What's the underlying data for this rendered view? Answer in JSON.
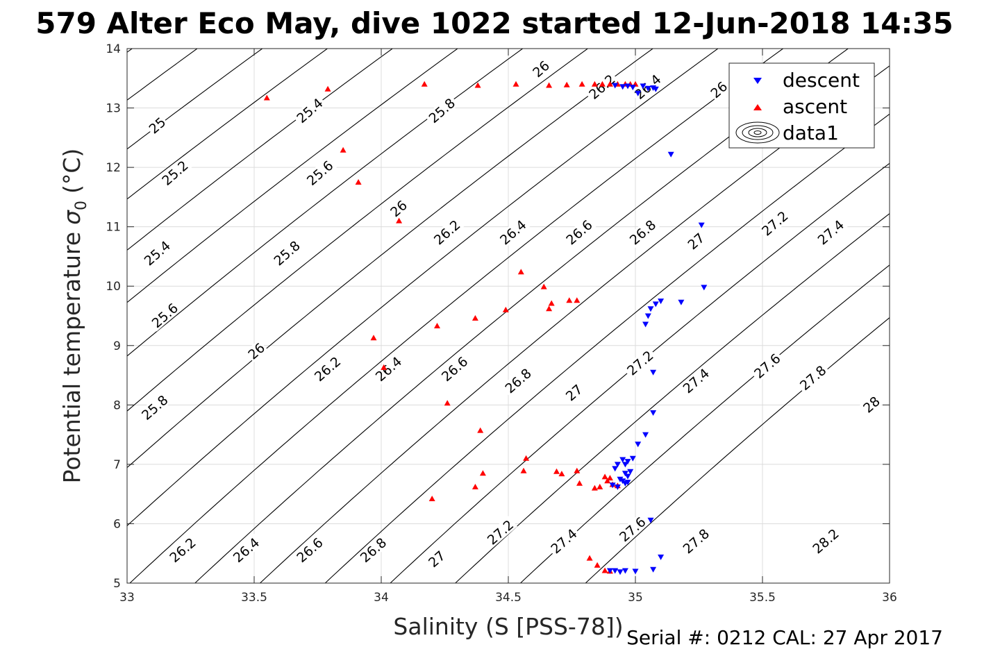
{
  "title": "579 Alter Eco May, dive 1022 started 12-Jun-2018 14:35",
  "footer": "Serial #: 0212  CAL: 27 Apr 2017",
  "chart_data": {
    "type": "scatter",
    "xlabel": "Salinity (S [PSS-78])",
    "ylabel": "Potential temperature",
    "ylabel_symbol": "σ",
    "ylabel_sub": "0",
    "ylabel_unit": "(°C)",
    "xlim": [
      33,
      36
    ],
    "ylim": [
      5,
      14
    ],
    "xticks": [
      33,
      33.5,
      34,
      34.5,
      35,
      35.5,
      36
    ],
    "xtick_labels": [
      "33",
      "33.5",
      "34",
      "34.5",
      "35",
      "35.5",
      "36"
    ],
    "yticks": [
      5,
      6,
      7,
      8,
      9,
      10,
      11,
      12,
      13,
      14
    ],
    "ytick_labels": [
      "5",
      "6",
      "7",
      "8",
      "9",
      "10",
      "11",
      "12",
      "13",
      "14"
    ],
    "grid": true,
    "legend": {
      "position": "top-right",
      "entries": [
        {
          "label": "descent",
          "marker": "triangle-down",
          "color": "#0000ff"
        },
        {
          "label": "ascent",
          "marker": "triangle-up",
          "color": "#ff0000"
        },
        {
          "label": "data1",
          "marker": "contour",
          "color": "#000000"
        }
      ]
    },
    "contours": {
      "name": "data1",
      "color": "#000000",
      "levels": [
        24.8,
        25.0,
        25.2,
        25.4,
        25.6,
        25.8,
        26.0,
        26.2,
        26.4,
        26.6,
        26.8,
        27.0,
        27.2,
        27.4,
        27.6,
        27.8,
        28.0,
        28.2,
        28.4
      ],
      "labels": [
        {
          "text": "25",
          "x": 33.12,
          "y": 12.7
        },
        {
          "text": "25.2",
          "x": 33.19,
          "y": 11.9
        },
        {
          "text": "25.4",
          "x": 33.12,
          "y": 10.55
        },
        {
          "text": "25.6",
          "x": 33.15,
          "y": 9.5
        },
        {
          "text": "25.8",
          "x": 33.11,
          "y": 7.95
        },
        {
          "text": "26.2",
          "x": 33.22,
          "y": 5.55
        },
        {
          "text": "25.4",
          "x": 33.72,
          "y": 12.95
        },
        {
          "text": "25.6",
          "x": 33.76,
          "y": 11.9
        },
        {
          "text": "25.8",
          "x": 33.63,
          "y": 10.55
        },
        {
          "text": "26",
          "x": 33.51,
          "y": 8.9
        },
        {
          "text": "26.4",
          "x": 33.47,
          "y": 5.55
        },
        {
          "text": "26",
          "x": 34.07,
          "y": 11.3
        },
        {
          "text": "26.2",
          "x": 33.79,
          "y": 8.6
        },
        {
          "text": "26.6",
          "x": 33.72,
          "y": 5.55
        },
        {
          "text": "25.8",
          "x": 34.24,
          "y": 12.95
        },
        {
          "text": "26.2",
          "x": 34.26,
          "y": 10.9
        },
        {
          "text": "26.4",
          "x": 34.03,
          "y": 8.6
        },
        {
          "text": "26.8",
          "x": 33.97,
          "y": 5.55
        },
        {
          "text": "26",
          "x": 34.63,
          "y": 13.65
        },
        {
          "text": "26.4",
          "x": 34.52,
          "y": 10.9
        },
        {
          "text": "26.6",
          "x": 34.29,
          "y": 8.6
        },
        {
          "text": "27",
          "x": 34.22,
          "y": 5.4
        },
        {
          "text": "26.2",
          "x": 34.87,
          "y": 13.35
        },
        {
          "text": "26.6",
          "x": 34.78,
          "y": 10.9
        },
        {
          "text": "26.8",
          "x": 34.54,
          "y": 8.4
        },
        {
          "text": "27.2",
          "x": 34.47,
          "y": 5.85
        },
        {
          "text": "26.4",
          "x": 35.05,
          "y": 13.35
        },
        {
          "text": "26.8",
          "x": 35.03,
          "y": 10.9
        },
        {
          "text": "27",
          "x": 34.76,
          "y": 8.2
        },
        {
          "text": "27.4",
          "x": 34.72,
          "y": 5.7
        },
        {
          "text": "26",
          "x": 35.33,
          "y": 13.3
        },
        {
          "text": "27",
          "x": 35.24,
          "y": 10.75
        },
        {
          "text": "27.2",
          "x": 35.02,
          "y": 8.7
        },
        {
          "text": "27.6",
          "x": 34.99,
          "y": 5.9
        },
        {
          "text": "27.2",
          "x": 35.55,
          "y": 11.05
        },
        {
          "text": "27.4",
          "x": 35.24,
          "y": 8.4
        },
        {
          "text": "27.8",
          "x": 35.24,
          "y": 5.7
        },
        {
          "text": "27.4",
          "x": 35.77,
          "y": 10.9
        },
        {
          "text": "27.6",
          "x": 35.52,
          "y": 8.65
        },
        {
          "text": "28.2",
          "x": 35.75,
          "y": 5.7
        },
        {
          "text": "27.8",
          "x": 35.7,
          "y": 8.45
        },
        {
          "text": "28",
          "x": 35.93,
          "y": 8.0
        }
      ]
    },
    "series": [
      {
        "name": "descent",
        "marker": "triangle-down",
        "color": "#0000ff",
        "x": [
          34.92,
          34.95,
          34.97,
          34.99,
          35.01,
          35.03,
          35.05,
          35.07,
          35.08,
          35.14,
          35.26,
          35.27,
          35.18,
          35.1,
          35.08,
          35.06,
          35.05,
          35.04,
          35.07,
          35.07,
          35.04,
          35.01,
          34.99,
          34.97,
          34.96,
          34.95,
          34.93,
          34.92,
          34.96,
          34.97,
          34.98,
          34.94,
          34.95,
          34.97,
          34.91,
          34.93,
          34.96,
          35.06,
          35.1,
          35.07,
          34.9,
          34.92,
          34.94,
          34.96,
          35.0
        ],
        "y": [
          13.38,
          13.36,
          13.37,
          13.35,
          13.25,
          13.37,
          13.33,
          13.34,
          13.32,
          12.22,
          11.03,
          9.98,
          9.73,
          9.75,
          9.7,
          9.62,
          9.5,
          9.36,
          8.55,
          7.87,
          7.5,
          7.34,
          7.1,
          7.05,
          7.0,
          7.08,
          7.0,
          6.93,
          6.85,
          6.8,
          6.88,
          6.75,
          6.72,
          6.7,
          6.65,
          6.62,
          6.68,
          6.06,
          5.44,
          5.23,
          5.21,
          5.21,
          5.19,
          5.21,
          5.2
        ]
      },
      {
        "name": "ascent",
        "marker": "triangle-up",
        "color": "#ff0000",
        "x": [
          33.55,
          33.79,
          34.17,
          34.38,
          34.53,
          34.66,
          34.73,
          34.79,
          34.84,
          34.87,
          34.9,
          34.93,
          34.96,
          34.98,
          35.0,
          33.85,
          33.91,
          34.07,
          34.55,
          34.64,
          34.67,
          34.66,
          34.74,
          34.77,
          34.49,
          34.37,
          34.22,
          33.97,
          34.01,
          34.26,
          34.39,
          34.2,
          34.37,
          34.4,
          34.56,
          34.57,
          34.69,
          34.71,
          34.77,
          34.78,
          34.84,
          34.86,
          34.89,
          34.91,
          34.93,
          34.88,
          34.9,
          34.82,
          34.85,
          34.88,
          34.9
        ],
        "y": [
          13.17,
          13.32,
          13.4,
          13.38,
          13.4,
          13.38,
          13.39,
          13.4,
          13.4,
          13.4,
          13.4,
          13.4,
          13.4,
          13.4,
          13.4,
          12.29,
          11.75,
          11.1,
          10.24,
          9.99,
          9.71,
          9.62,
          9.76,
          9.76,
          9.6,
          9.46,
          9.33,
          9.13,
          8.63,
          8.03,
          7.57,
          6.42,
          6.62,
          6.85,
          6.89,
          7.1,
          6.88,
          6.84,
          6.89,
          6.68,
          6.6,
          6.62,
          6.72,
          6.66,
          6.64,
          6.79,
          6.77,
          5.42,
          5.3,
          5.21,
          5.2
        ]
      }
    ]
  }
}
